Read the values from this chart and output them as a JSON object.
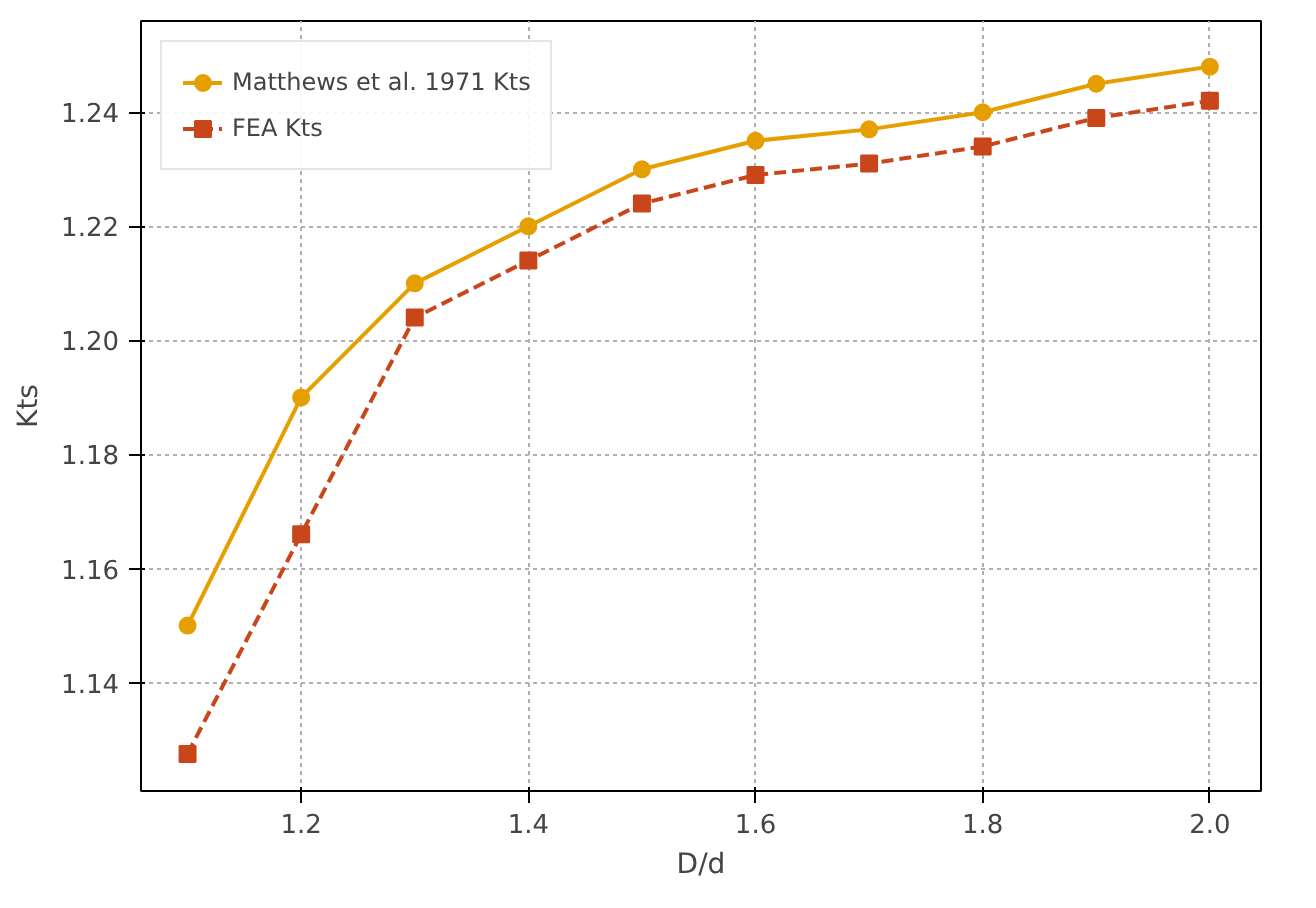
{
  "chart_data": {
    "type": "line",
    "xlabel": "D/d",
    "ylabel": "Kts",
    "x": [
      1.1,
      1.2,
      1.3,
      1.4,
      1.5,
      1.6,
      1.7,
      1.8,
      1.9,
      2.0
    ],
    "series": [
      {
        "name": "Matthews et al. 1971 Kts",
        "color": "#e69f00",
        "marker": "circle",
        "line_style": "solid",
        "values": [
          1.15,
          1.19,
          1.21,
          1.22,
          1.23,
          1.235,
          1.237,
          1.24,
          1.245,
          1.248
        ]
      },
      {
        "name": "FEA Kts",
        "color": "#c8461a",
        "marker": "square",
        "line_style": "dashed",
        "values": [
          1.1275,
          1.166,
          1.204,
          1.214,
          1.224,
          1.229,
          1.231,
          1.234,
          1.239,
          1.242
        ]
      }
    ],
    "xlim": [
      1.059,
      2.045
    ],
    "ylim": [
      1.121,
      1.256
    ],
    "xticks": [
      1.2,
      1.4,
      1.6,
      1.8,
      {
        "value": 2.0,
        "label": "2.0"
      }
    ],
    "yticks": [
      {
        "value": 1.14,
        "label": "1.14"
      },
      {
        "value": 1.16,
        "label": "1.16"
      },
      {
        "value": 1.18,
        "label": "1.18"
      },
      {
        "value": 1.2,
        "label": "1.20"
      },
      {
        "value": 1.22,
        "label": "1.22"
      },
      {
        "value": 1.24,
        "label": "1.24"
      }
    ],
    "grid": true,
    "legend": "top left"
  }
}
